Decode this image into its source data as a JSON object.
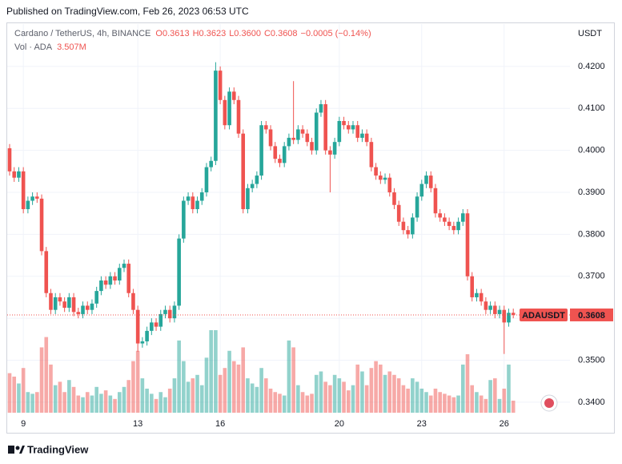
{
  "chart_data": {
    "type": "candlestick",
    "published": "Published on TradingView.com, Feb 26, 2023 06:53 UTC",
    "legend": {
      "symbol": "Cardano / TetherUS, 4h, BINANCE",
      "ohlc": [
        "O0.3613",
        "H0.3623",
        "L0.3600",
        "C0.3608"
      ],
      "change": "−0.0005 (−0.14%)",
      "volume_title": "Vol · ADA"
    },
    "volume_label": "3.507M",
    "axis_unit": "USDT",
    "price_tag": "ADAUSDT",
    "footer": "TradingView",
    "up_color": "#26a69a",
    "down_color": "#ef5350",
    "grid": true,
    "ylim": [
      0.3375,
      0.4301
    ],
    "yticks": [
      {
        "value": 0.34,
        "label": "0.3400"
      },
      {
        "value": 0.35,
        "label": "0.3500"
      },
      {
        "value": 0.36,
        "label": "0.3600"
      },
      {
        "value": 0.37,
        "label": "0.3700"
      },
      {
        "value": 0.38,
        "label": "0.3800"
      },
      {
        "value": 0.39,
        "label": "0.3900"
      },
      {
        "value": 0.4,
        "label": "0.4000"
      },
      {
        "value": 0.41,
        "label": "0.4100"
      },
      {
        "value": 0.42,
        "label": "0.4200"
      }
    ],
    "categories": [
      null,
      null,
      null,
      "9",
      null,
      null,
      null,
      null,
      null,
      null,
      null,
      null,
      null,
      null,
      null,
      null,
      null,
      null,
      null,
      null,
      null,
      null,
      null,
      null,
      null,
      null,
      null,
      null,
      "13",
      null,
      null,
      null,
      null,
      null,
      null,
      null,
      null,
      null,
      null,
      null,
      null,
      null,
      null,
      null,
      null,
      null,
      "16",
      null,
      null,
      null,
      null,
      null,
      null,
      null,
      null,
      null,
      null,
      null,
      null,
      null,
      null,
      null,
      null,
      null,
      null,
      null,
      null,
      null,
      null,
      null,
      null,
      null,
      "20",
      null,
      null,
      null,
      null,
      null,
      null,
      null,
      null,
      null,
      null,
      null,
      null,
      null,
      null,
      null,
      null,
      null,
      "23",
      null,
      null,
      null,
      null,
      null,
      null,
      null,
      null,
      null,
      null,
      null,
      null,
      null,
      null,
      null,
      null,
      null,
      "26",
      null,
      null
    ],
    "open": [
      0.4005,
      0.395,
      0.3935,
      0.395,
      0.386,
      0.388,
      0.389,
      0.3885,
      0.376,
      0.366,
      0.362,
      0.365,
      0.364,
      0.3625,
      0.365,
      0.3615,
      0.361,
      0.363,
      0.362,
      0.3635,
      0.3665,
      0.369,
      0.368,
      0.37,
      0.369,
      0.372,
      0.373,
      0.366,
      0.362,
      0.354,
      0.3545,
      0.357,
      0.359,
      0.358,
      0.361,
      0.362,
      0.36,
      0.363,
      0.379,
      0.388,
      0.389,
      0.386,
      0.388,
      0.39,
      0.396,
      0.3975,
      0.419,
      0.412,
      0.406,
      0.414,
      0.412,
      0.404,
      0.386,
      0.391,
      0.392,
      0.394,
      0.406,
      0.405,
      0.401,
      0.398,
      0.397,
      0.401,
      0.403,
      0.4025,
      0.405,
      0.404,
      0.402,
      0.4,
      0.409,
      0.411,
      0.4,
      0.399,
      0.402,
      0.407,
      0.406,
      0.405,
      0.406,
      0.403,
      0.404,
      0.402,
      0.396,
      0.394,
      0.393,
      0.3935,
      0.39,
      0.387,
      0.383,
      0.381,
      0.38,
      0.384,
      0.389,
      0.392,
      0.394,
      0.391,
      0.385,
      0.384,
      0.383,
      0.382,
      0.381,
      0.383,
      0.385,
      0.37,
      0.365,
      0.366,
      0.364,
      0.362,
      0.363,
      0.361,
      0.362,
      0.359,
      0.3613
    ],
    "high": [
      0.4015,
      0.396,
      0.396,
      0.396,
      0.389,
      0.39,
      0.39,
      0.3895,
      0.377,
      0.367,
      0.366,
      0.366,
      0.365,
      0.366,
      0.366,
      0.3625,
      0.364,
      0.364,
      0.3645,
      0.3675,
      0.37,
      0.37,
      0.371,
      0.371,
      0.373,
      0.374,
      0.374,
      0.367,
      0.363,
      0.3555,
      0.358,
      0.36,
      0.36,
      0.362,
      0.363,
      0.363,
      0.364,
      0.38,
      0.389,
      0.39,
      0.39,
      0.389,
      0.391,
      0.397,
      0.3985,
      0.421,
      0.42,
      0.413,
      0.415,
      0.415,
      0.413,
      0.405,
      0.392,
      0.393,
      0.395,
      0.407,
      0.407,
      0.406,
      0.402,
      0.399,
      0.402,
      0.404,
      0.4165,
      0.406,
      0.406,
      0.405,
      0.403,
      0.41,
      0.412,
      0.412,
      0.401,
      0.403,
      0.408,
      0.408,
      0.407,
      0.407,
      0.407,
      0.405,
      0.405,
      0.403,
      0.397,
      0.395,
      0.3945,
      0.3945,
      0.391,
      0.388,
      0.384,
      0.382,
      0.385,
      0.39,
      0.393,
      0.395,
      0.395,
      0.392,
      0.386,
      0.385,
      0.384,
      0.383,
      0.384,
      0.386,
      0.386,
      0.371,
      0.367,
      0.367,
      0.365,
      0.364,
      0.364,
      0.363,
      0.363,
      0.3623,
      0.3623
    ],
    "low": [
      0.394,
      0.3925,
      0.3925,
      0.385,
      0.385,
      0.387,
      0.3875,
      0.375,
      0.365,
      0.361,
      0.361,
      0.363,
      0.3615,
      0.3615,
      0.3605,
      0.36,
      0.36,
      0.361,
      0.361,
      0.3625,
      0.3655,
      0.367,
      0.367,
      0.368,
      0.368,
      0.371,
      0.365,
      0.361,
      0.352,
      0.353,
      0.3535,
      0.356,
      0.357,
      0.357,
      0.36,
      0.359,
      0.359,
      0.362,
      0.378,
      0.387,
      0.385,
      0.385,
      0.387,
      0.389,
      0.395,
      0.3965,
      0.411,
      0.405,
      0.405,
      0.411,
      0.403,
      0.385,
      0.385,
      0.39,
      0.391,
      0.393,
      0.404,
      0.4,
      0.397,
      0.396,
      0.396,
      0.4,
      0.4015,
      0.4015,
      0.403,
      0.401,
      0.399,
      0.399,
      0.408,
      0.399,
      0.39,
      0.398,
      0.401,
      0.405,
      0.404,
      0.404,
      0.402,
      0.402,
      0.401,
      0.395,
      0.393,
      0.392,
      0.392,
      0.389,
      0.386,
      0.382,
      0.38,
      0.379,
      0.379,
      0.383,
      0.388,
      0.391,
      0.39,
      0.384,
      0.383,
      0.382,
      0.381,
      0.38,
      0.38,
      0.382,
      0.369,
      0.364,
      0.364,
      0.363,
      0.361,
      0.361,
      0.36,
      0.36,
      0.3515,
      0.358,
      0.36
    ],
    "close": [
      0.395,
      0.3935,
      0.395,
      0.386,
      0.388,
      0.389,
      0.3885,
      0.376,
      0.366,
      0.362,
      0.365,
      0.364,
      0.3625,
      0.365,
      0.3615,
      0.361,
      0.363,
      0.362,
      0.3635,
      0.3665,
      0.369,
      0.368,
      0.37,
      0.369,
      0.372,
      0.373,
      0.366,
      0.362,
      0.354,
      0.3545,
      0.357,
      0.359,
      0.358,
      0.361,
      0.362,
      0.36,
      0.363,
      0.379,
      0.388,
      0.389,
      0.386,
      0.388,
      0.39,
      0.396,
      0.3975,
      0.419,
      0.412,
      0.406,
      0.414,
      0.412,
      0.404,
      0.386,
      0.391,
      0.392,
      0.394,
      0.406,
      0.405,
      0.401,
      0.398,
      0.397,
      0.401,
      0.403,
      0.4025,
      0.405,
      0.404,
      0.402,
      0.4,
      0.409,
      0.411,
      0.4,
      0.399,
      0.402,
      0.407,
      0.406,
      0.405,
      0.406,
      0.403,
      0.404,
      0.402,
      0.396,
      0.394,
      0.393,
      0.3935,
      0.39,
      0.387,
      0.383,
      0.381,
      0.38,
      0.384,
      0.389,
      0.392,
      0.394,
      0.391,
      0.385,
      0.384,
      0.383,
      0.382,
      0.381,
      0.383,
      0.385,
      0.37,
      0.365,
      0.366,
      0.364,
      0.362,
      0.363,
      0.361,
      0.362,
      0.359,
      0.3613,
      0.3608
    ],
    "volume": [
      11500000,
      10500000,
      8500000,
      13000000,
      6000000,
      5500000,
      6000000,
      19000000,
      22000000,
      14000000,
      8000000,
      9000000,
      6000000,
      9500000,
      7500000,
      5000000,
      4500000,
      6000000,
      5000000,
      7500000,
      5500000,
      6500000,
      5000000,
      4000000,
      6000000,
      7500000,
      9500000,
      15000000,
      18000000,
      10000000,
      7000000,
      5500000,
      4000000,
      6000000,
      4500000,
      7000000,
      10000000,
      21000000,
      15000000,
      9000000,
      10000000,
      11000000,
      8000000,
      16000000,
      24000000,
      24000000,
      11000000,
      13000000,
      18000000,
      15000000,
      14000000,
      19000000,
      10000000,
      8500000,
      7500000,
      13000000,
      10000000,
      7000000,
      6000000,
      5500000,
      5000000,
      21000000,
      19000000,
      8000000,
      6000000,
      5000000,
      5500000,
      11000000,
      12000000,
      9000000,
      8000000,
      11000000,
      10000000,
      9000000,
      6500000,
      8000000,
      14000000,
      12000000,
      8000000,
      13000000,
      15000000,
      14000000,
      11000000,
      12000000,
      11000000,
      10000000,
      8000000,
      7000000,
      10000000,
      9000000,
      7000000,
      6000000,
      5000000,
      7000000,
      6000000,
      5500000,
      5000000,
      4500000,
      5000000,
      14000000,
      17000000,
      8000000,
      6000000,
      5000000,
      4000000,
      9500000,
      10000000,
      4000000,
      7000000,
      14000000,
      3507000
    ]
  }
}
